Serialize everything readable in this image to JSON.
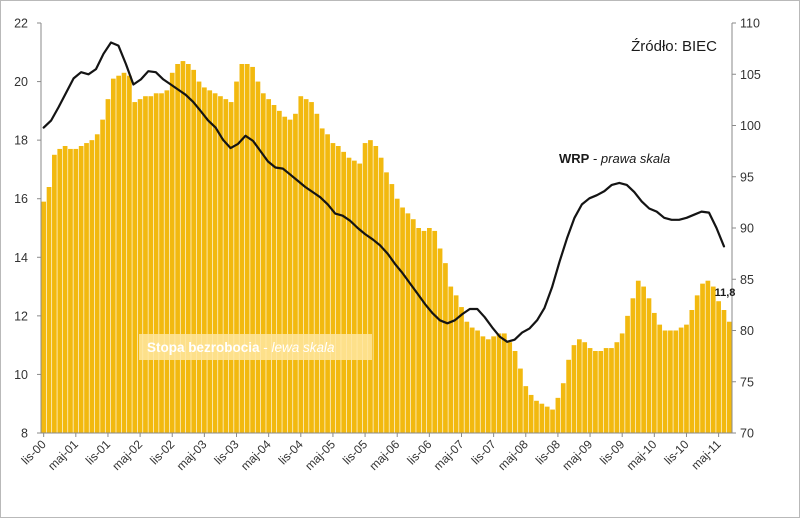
{
  "chart_data": {
    "type": "bar+line",
    "source": "Źródło: BIEC",
    "x_labels": [
      "lis-00",
      "maj-01",
      "lis-01",
      "maj-02",
      "lis-02",
      "maj-03",
      "lis-03",
      "maj-04",
      "lis-04",
      "maj-05",
      "lis-05",
      "maj-06",
      "lis-06",
      "maj-07",
      "lis-07",
      "maj-08",
      "lis-08",
      "maj-09",
      "lis-09",
      "maj-10",
      "lis-10",
      "maj-11"
    ],
    "left_axis": {
      "min": 8,
      "max": 22,
      "ticks": [
        "8",
        "10",
        "12",
        "14",
        "16",
        "18",
        "20",
        "22"
      ]
    },
    "right_axis": {
      "min": 70,
      "max": 110,
      "ticks": [
        "70",
        "75",
        "80",
        "85",
        "90",
        "95",
        "100",
        "105",
        "110"
      ]
    },
    "bars": {
      "name_bold": "Stopa bezrobocia",
      "name_sep": " - ",
      "name_italic": "lewa skala",
      "color": "#f2b90f",
      "values": [
        15.9,
        16.4,
        17.5,
        17.7,
        17.8,
        17.7,
        17.7,
        17.8,
        17.9,
        18.0,
        18.2,
        18.7,
        19.4,
        20.1,
        20.2,
        20.3,
        20.2,
        19.3,
        19.4,
        19.5,
        19.5,
        19.6,
        19.6,
        19.7,
        20.3,
        20.6,
        20.7,
        20.6,
        20.4,
        20.0,
        19.8,
        19.7,
        19.6,
        19.5,
        19.4,
        19.3,
        20.0,
        20.6,
        20.6,
        20.5,
        20.0,
        19.6,
        19.4,
        19.2,
        19.0,
        18.8,
        18.7,
        18.9,
        19.5,
        19.4,
        19.3,
        18.9,
        18.4,
        18.2,
        17.9,
        17.8,
        17.6,
        17.4,
        17.3,
        17.2,
        17.9,
        18.0,
        17.8,
        17.4,
        16.9,
        16.5,
        16.0,
        15.7,
        15.5,
        15.3,
        15.0,
        14.9,
        15.0,
        14.9,
        14.3,
        13.8,
        13.0,
        12.7,
        12.3,
        11.8,
        11.6,
        11.5,
        11.3,
        11.2,
        11.3,
        11.4,
        11.4,
        11.1,
        10.8,
        10.2,
        9.6,
        9.3,
        9.1,
        9.0,
        8.9,
        8.8,
        9.2,
        9.7,
        10.5,
        11.0,
        11.2,
        11.1,
        10.9,
        10.8,
        10.8,
        10.9,
        10.9,
        11.1,
        11.4,
        12.0,
        12.6,
        13.2,
        13.0,
        12.6,
        12.1,
        11.7,
        11.5,
        11.5,
        11.5,
        11.6,
        11.7,
        12.2,
        12.7,
        13.1,
        13.2,
        13.0,
        12.5,
        12.2,
        11.8
      ]
    },
    "line": {
      "name_bold": "WRP",
      "name_sep": " - ",
      "name_italic": "prawa skala",
      "color": "#141414",
      "x_start": 0,
      "x_end": 127,
      "values": [
        99.8,
        100.5,
        101.8,
        103.2,
        104.6,
        105.2,
        105.0,
        105.5,
        107.0,
        108.1,
        107.8,
        106.0,
        104.0,
        104.5,
        105.3,
        105.2,
        104.5,
        104.0,
        103.5,
        103.0,
        102.3,
        101.4,
        100.5,
        99.8,
        98.6,
        97.8,
        98.2,
        99.0,
        98.5,
        97.5,
        96.5,
        95.9,
        95.8,
        95.2,
        94.6,
        94.0,
        93.5,
        93.0,
        92.3,
        91.4,
        91.2,
        90.7,
        90.0,
        89.4,
        88.9,
        88.3,
        87.5,
        86.5,
        85.6,
        84.6,
        83.6,
        82.6,
        81.7,
        81.0,
        80.7,
        81.0,
        81.6,
        82.1,
        82.1,
        81.3,
        80.3,
        79.4,
        78.9,
        79.1,
        79.8,
        80.2,
        81.0,
        82.2,
        84.2,
        86.7,
        89.0,
        91.0,
        92.3,
        92.9,
        93.2,
        93.6,
        94.2,
        94.4,
        94.2,
        93.5,
        92.6,
        91.9,
        91.6,
        91.0,
        90.8,
        90.8,
        91.0,
        91.3,
        91.6,
        91.5,
        90.0,
        88.2
      ]
    },
    "annotation": "11,8",
    "grid": false,
    "legend_placement": "inline"
  }
}
